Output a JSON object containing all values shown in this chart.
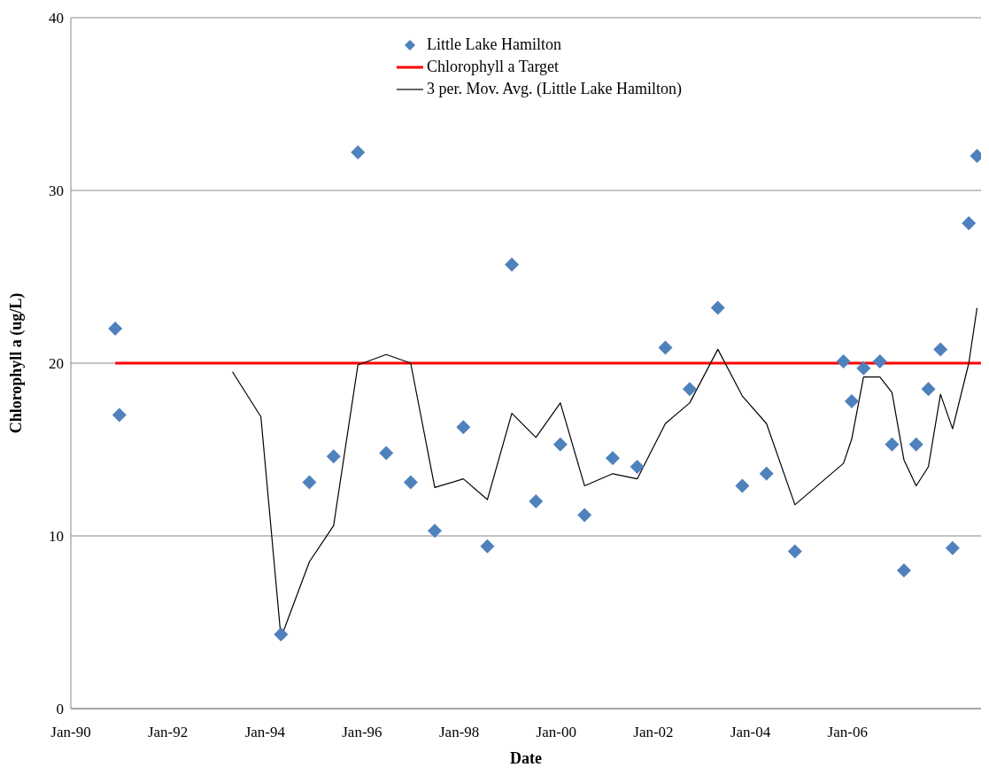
{
  "chart_data": {
    "type": "scatter",
    "xlabel": "Date",
    "ylabel": "Chlorophyll a (ug/L)",
    "xlim": [
      "1990-01",
      "2008-10"
    ],
    "xticks": [
      {
        "value": "1990-01",
        "label": "Jan-90"
      },
      {
        "value": "1992-01",
        "label": "Jan-92"
      },
      {
        "value": "1994-01",
        "label": "Jan-94"
      },
      {
        "value": "1996-01",
        "label": "Jan-96"
      },
      {
        "value": "1998-01",
        "label": "Jan-98"
      },
      {
        "value": "2000-01",
        "label": "Jan-00"
      },
      {
        "value": "2002-01",
        "label": "Jan-02"
      },
      {
        "value": "2004-01",
        "label": "Jan-04"
      },
      {
        "value": "2006-01",
        "label": "Jan-06"
      }
    ],
    "ylim": [
      0,
      40
    ],
    "yticks": [
      0,
      10,
      20,
      30,
      40
    ],
    "grid": "y",
    "legend": "top",
    "series": [
      {
        "name": "Little Lake Hamilton",
        "marker": "diamond",
        "color": "#4f81bd",
        "x": [
          "1990-12",
          "1991-01",
          "1994-05",
          "1994-12",
          "1995-06",
          "1995-12",
          "1996-07",
          "1997-01",
          "1997-07",
          "1998-02",
          "1998-08",
          "1999-02",
          "1999-08",
          "2000-02",
          "2000-08",
          "2001-03",
          "2001-09",
          "2002-04",
          "2002-10",
          "2003-05",
          "2003-11",
          "2004-05",
          "2004-12",
          "2005-12",
          "2006-02",
          "2006-05",
          "2006-09",
          "2006-12",
          "2007-03",
          "2007-06",
          "2007-09",
          "2007-12",
          "2008-03",
          "2008-07",
          "2008-09"
        ],
        "values": [
          22.0,
          17.0,
          4.3,
          13.1,
          14.6,
          32.2,
          14.8,
          13.1,
          10.3,
          16.3,
          9.4,
          25.7,
          12.0,
          15.3,
          11.2,
          14.5,
          14.0,
          20.9,
          18.5,
          23.2,
          12.9,
          13.6,
          9.1,
          20.1,
          17.8,
          19.7,
          20.1,
          15.3,
          8.0,
          15.3,
          18.5,
          20.8,
          9.3,
          28.1,
          32.0
        ]
      },
      {
        "name": "Chlorophyll a Target",
        "type": "line",
        "color": "#ff0000",
        "x": [
          "1990-12",
          "2008-10"
        ],
        "values": [
          20,
          20
        ]
      },
      {
        "name": "3 per. Mov. Avg. (Little Lake Hamilton)",
        "type": "line",
        "color": "#000000",
        "x": [
          "1993-05",
          "1993-12",
          "1994-05",
          "1994-12",
          "1995-06",
          "1995-12",
          "1996-07",
          "1997-01",
          "1997-07",
          "1998-02",
          "1998-08",
          "1999-02",
          "1999-08",
          "2000-02",
          "2000-08",
          "2001-03",
          "2001-09",
          "2002-04",
          "2002-10",
          "2003-05",
          "2003-11",
          "2004-05",
          "2004-12",
          "2005-12",
          "2006-02",
          "2006-05",
          "2006-09",
          "2006-12",
          "2007-03",
          "2007-06",
          "2007-09",
          "2007-12",
          "2008-03",
          "2008-07",
          "2008-09"
        ],
        "values": [
          19.5,
          16.9,
          4.1,
          8.5,
          10.6,
          19.9,
          20.5,
          20.0,
          12.8,
          13.3,
          12.1,
          17.1,
          15.7,
          17.7,
          12.9,
          13.6,
          13.3,
          16.5,
          17.7,
          20.8,
          18.1,
          16.5,
          11.8,
          14.2,
          15.6,
          19.2,
          19.2,
          18.3,
          14.4,
          12.9,
          14.0,
          18.2,
          16.2,
          20.0,
          23.2
        ]
      }
    ]
  }
}
